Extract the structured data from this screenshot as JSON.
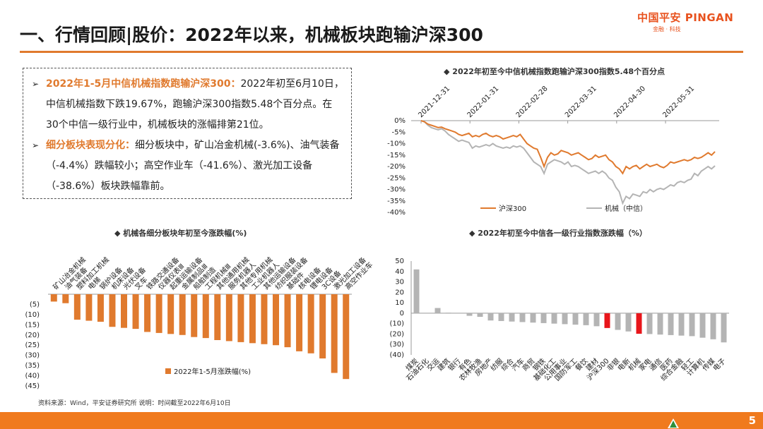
{
  "header": {
    "title": "一、行情回顾|股价：2022年以来，机械板块跑输沪深300",
    "logo_main": "中国平安 PINGAN",
    "logo_sub": "金融 · 科技"
  },
  "summary": {
    "p1_head": "2022年1-5月中信机械指数跑输沪深300：",
    "p1_body": "2022年初至6月10日，中信机械指数下跌19.67%，跑输沪深300指数5.48个百分点。在30个中信一级行业中，机械板块的涨幅排第21位。",
    "p2_head": "细分板块表现分化：",
    "p2_body": "细分板块中，矿山冶金机械(-3.6%)、油气装备（-4.4%）跌幅较小；高空作业车（-41.6%）、激光加工设备（-38.6%）板块跌幅靠前。"
  },
  "colors": {
    "orange": "#e07a2e",
    "gray": "#b4b4b4",
    "red": "#e8161b"
  },
  "chart_data": [
    {
      "type": "line",
      "title": "◆ 2022年初至今中信机械指数跑输沪深300指数5.48个百分点",
      "x_ticks": [
        "2021-12-31",
        "2022-01-31",
        "2022-02-28",
        "2022-03-31",
        "2022-04-30",
        "2022-05-31"
      ],
      "y_ticks": [
        "0%",
        "-5%",
        "-10%",
        "-15%",
        "-20%",
        "-25%",
        "-30%",
        "-35%",
        "-40%"
      ],
      "ylim": [
        -40,
        0
      ],
      "legend_position": "bottom",
      "series": [
        {
          "name": "沪深300",
          "color": "#e07a2e",
          "values": [
            0,
            -0.5,
            -1.5,
            -2,
            -2.5,
            -3,
            -2.8,
            -3.5,
            -4,
            -4.5,
            -5,
            -6,
            -6.5,
            -6,
            -5.5,
            -7,
            -6.5,
            -7,
            -6,
            -5.5,
            -6.5,
            -7,
            -6.5,
            -7,
            -8,
            -7.5,
            -7,
            -6.5,
            -7,
            -6,
            -8,
            -10,
            -11,
            -12,
            -12.5,
            -16,
            -20,
            -16,
            -14,
            -15,
            -14.5,
            -13,
            -13.5,
            -14,
            -15,
            -14.5,
            -14,
            -15,
            -16,
            -17,
            -16.5,
            -15,
            -16,
            -15.5,
            -15,
            -17,
            -18,
            -20,
            -21,
            -23,
            -20,
            -21,
            -20,
            -19.5,
            -21,
            -20,
            -19,
            -20,
            -19.5,
            -19,
            -20,
            -20.5,
            -19.5,
            -18,
            -18.5,
            -18,
            -17.5,
            -17,
            -17.5,
            -17,
            -16,
            -16.5,
            -16,
            -15,
            -14,
            -15,
            -13.5
          ]
        },
        {
          "name": "机械（中信）",
          "color": "#b4b4b4",
          "values": [
            0,
            -0.5,
            -2,
            -3,
            -3.5,
            -4,
            -3.5,
            -4.5,
            -6,
            -7,
            -8,
            -9,
            -8.5,
            -9,
            -9.5,
            -12,
            -11,
            -11.5,
            -11,
            -10.5,
            -11,
            -10,
            -11,
            -11.5,
            -12,
            -11.5,
            -12,
            -11,
            -11.5,
            -11,
            -12,
            -14,
            -16,
            -18,
            -19,
            -20,
            -23,
            -19,
            -18,
            -17,
            -17.5,
            -18,
            -19,
            -18,
            -20,
            -19.5,
            -20,
            -21,
            -22,
            -23,
            -22.5,
            -22,
            -23,
            -22,
            -23,
            -25,
            -26,
            -29,
            -31,
            -36,
            -33,
            -34,
            -32,
            -32.5,
            -33,
            -31,
            -31.5,
            -30,
            -31,
            -30,
            -29.5,
            -30,
            -29,
            -28,
            -28.5,
            -27,
            -26.5,
            -27,
            -26,
            -25.5,
            -23,
            -24,
            -22,
            -21,
            -20,
            -21,
            -19.7
          ]
        }
      ]
    },
    {
      "type": "bar",
      "title": "◆ 机械各细分板块年初至今涨跌幅(%)",
      "categories": [
        "矿山冶金机械",
        "油气装备",
        "塑料加工机械",
        "电梯",
        "锅炉设备",
        "机床设备",
        "光伏设备",
        "叉车",
        "铁路交通设备",
        "仪器仪表Ⅲ",
        "起重运输设备",
        "金属制品Ⅲ",
        "船舶制造",
        "工程机械Ⅲ",
        "其他通用机械",
        "服务机器人",
        "其他专用机械",
        "工业机器人",
        "其他运输设备",
        "纺织服装设备",
        "基础件",
        "核电设备",
        "锂电设备",
        "3C设备",
        "激光加工设备",
        "高空作业车"
      ],
      "values": [
        -3.6,
        -4.4,
        -12.5,
        -13,
        -13.5,
        -16,
        -16.5,
        -17,
        -18.5,
        -19,
        -19.5,
        -20,
        -21,
        -21.5,
        -22.5,
        -23,
        -23.5,
        -24,
        -24.5,
        -25,
        -26,
        -28,
        -29,
        -31.5,
        -38.6,
        -41.6
      ],
      "y_ticks": [
        "(5)",
        "(10)",
        "(15)",
        "(20)",
        "(25)",
        "(30)",
        "(35)",
        "(40)",
        "(45)"
      ],
      "ylim": [
        -45,
        0
      ],
      "legend": "2022年1-5月涨跌幅(%)",
      "color": "#e07a2e"
    },
    {
      "type": "bar",
      "title": "◆ 2022年初至今中信各一级行业指数涨跌幅（%）",
      "categories": [
        "煤炭",
        "石油石化",
        "交运",
        "建筑",
        "银行",
        "有色",
        "农林牧渔",
        "房地产",
        "纺服",
        "综合",
        "汽车",
        "商贸",
        "钢铁",
        "基础化工",
        "公用事业",
        "国防军工",
        "餐饮",
        "建材",
        "沪深300",
        "非银",
        "电新",
        "机械",
        "家电",
        "通信",
        "医药",
        "综合金融",
        "轻工",
        "计算机",
        "传媒",
        "电子"
      ],
      "values": [
        42,
        0,
        5,
        0.5,
        0,
        -2.5,
        -3.5,
        -7,
        -7.5,
        -8,
        -8.5,
        -9,
        -9.5,
        -10,
        -10.5,
        -11,
        -11.5,
        -12.5,
        -14.2,
        -16,
        -17.5,
        -19.7,
        -20,
        -20.5,
        -21,
        -21.5,
        -22,
        -23.5,
        -25,
        -28
      ],
      "highlight": [
        "沪深300",
        "机械"
      ],
      "y_ticks": [
        "50",
        "40",
        "30",
        "20",
        "10",
        "0",
        "(10)",
        "(20)",
        "(30)",
        "(40)"
      ],
      "ylim": [
        -40,
        50
      ],
      "color": "#b4b4b4",
      "highlight_color": "#e8161b"
    }
  ],
  "footer": {
    "source": "资料来源：Wind，平安证券研究所 说明：时间截至2022年6月10日",
    "page": "5"
  }
}
